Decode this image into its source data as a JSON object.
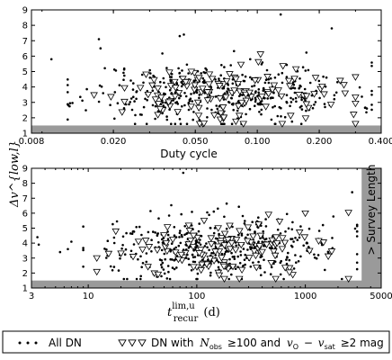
{
  "figure": {
    "ylabel": "Δv^{low,l}",
    "legend": {
      "all_dn_label": "All DN",
      "dn_with_label": "DN with",
      "nobs_label": "N",
      "nobs_sub": "obs",
      "nobs_cond": "≥100 and",
      "v_label": "v",
      "v_sub1": "O",
      "v_minus": "−",
      "v_label2": "v",
      "v_sub2": "sat",
      "v_cond": "≥2 mag"
    }
  },
  "chart_data": [
    {
      "type": "scatter",
      "xscale": "log",
      "xlim": [
        0.008,
        0.4
      ],
      "ylim": [
        1,
        9
      ],
      "xlabel": "Duty cycle",
      "ylabel": "Δv^{low,l}",
      "xtick_labels": [
        "0.008",
        "0.020",
        "0.050",
        "0.100",
        "0.200",
        "0.400"
      ],
      "xticks": [
        0.008,
        0.02,
        0.05,
        0.1,
        0.2,
        0.4
      ],
      "ytick_labels": [
        "1",
        "2",
        "3",
        "4",
        "5",
        "6",
        "7",
        "8",
        "9"
      ],
      "yticks": [
        1,
        2,
        3,
        4,
        5,
        6,
        7,
        8,
        9
      ],
      "shaded_band": {
        "y_from": 1,
        "y_to": 1.5
      },
      "grid": false,
      "series": [
        {
          "name": "All DN",
          "marker": "dot",
          "seed": 11,
          "count": 420,
          "x_range": [
            0.012,
            0.36
          ],
          "y_center": 3.6,
          "y_spread": 1.0
        },
        {
          "name": "DN with N_obs ≥100 and v_O − v_sat ≥2 mag",
          "marker": "triangle-down",
          "seed": 29,
          "count": 130,
          "x_range": [
            0.014,
            0.3
          ],
          "y_center": 3.5,
          "y_spread": 1.0
        }
      ],
      "outliers": [
        {
          "x": 0.01,
          "y": 5.8
        },
        {
          "x": 0.13,
          "y": 8.7
        },
        {
          "x": 0.23,
          "y": 7.8
        },
        {
          "x": 0.044,
          "y": 7.4
        },
        {
          "x": 0.017,
          "y": 7.1
        },
        {
          "x": 0.042,
          "y": 7.3
        }
      ]
    },
    {
      "type": "scatter",
      "xscale": "log",
      "xlim": [
        3,
        5000
      ],
      "ylim": [
        1,
        9
      ],
      "xlabel": "t_recur^{lim,u} (d)",
      "ylabel": "Δv^{low,l}",
      "xtick_labels": [
        "3",
        "10",
        "100",
        "1000",
        "5000"
      ],
      "xticks": [
        3,
        10,
        100,
        1000,
        5000
      ],
      "ytick_labels": [
        "1",
        "2",
        "3",
        "4",
        "5",
        "6",
        "7",
        "8",
        "9"
      ],
      "yticks": [
        1,
        2,
        3,
        4,
        5,
        6,
        7,
        8,
        9
      ],
      "shaded_band": {
        "y_from": 1,
        "y_to": 1.5
      },
      "survey_length": {
        "label": "Survey Length",
        "x_from": 3300,
        "x_to": 5000
      },
      "grid": false,
      "series": [
        {
          "name": "All DN",
          "marker": "dot",
          "seed": 47,
          "count": 440,
          "x_range": [
            9,
            3000
          ],
          "y_center": 3.6,
          "y_spread": 1.0
        },
        {
          "name": "DN with N_obs ≥100 and v_O − v_sat ≥2 mag",
          "marker": "triangle-down",
          "seed": 83,
          "count": 125,
          "x_range": [
            12,
            2500
          ],
          "y_center": 3.5,
          "y_spread": 1.0
        }
      ],
      "outliers": [
        {
          "x": 3.4,
          "y": 4.4
        },
        {
          "x": 3.5,
          "y": 3.9
        },
        {
          "x": 5.5,
          "y": 3.4
        },
        {
          "x": 6.5,
          "y": 3.6
        },
        {
          "x": 7.0,
          "y": 4.1
        },
        {
          "x": 75,
          "y": 8.7
        },
        {
          "x": 2700,
          "y": 7.4
        }
      ]
    }
  ]
}
